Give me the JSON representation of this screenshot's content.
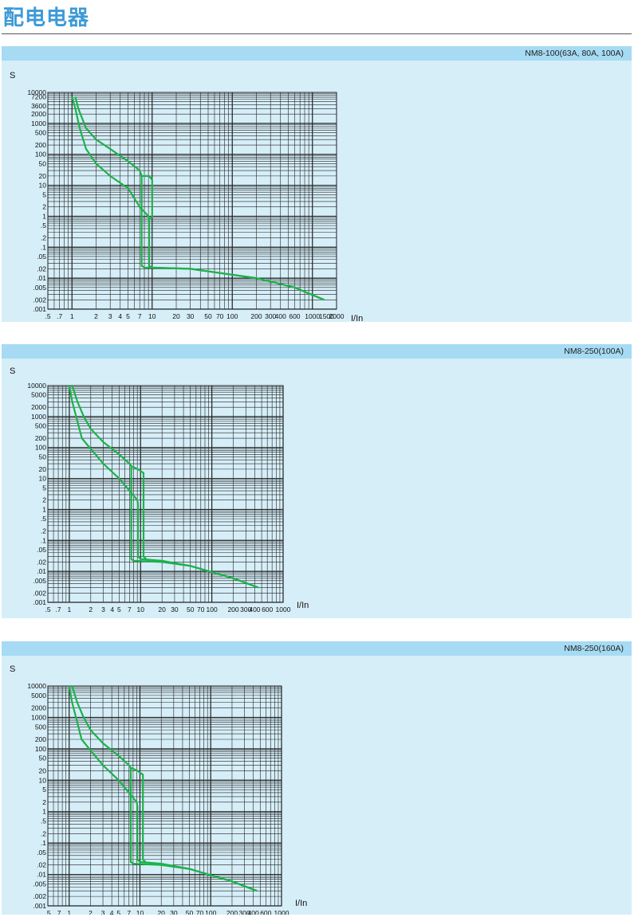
{
  "page_title": "配电电器",
  "chart_data": [
    {
      "type": "line",
      "title": "NM8-100(63A, 80A, 100A)",
      "ylabel": "S",
      "xlabel": "I/In",
      "y_ticks": [
        "10000",
        "7200",
        "3600",
        "2000",
        "1000",
        "500",
        "200",
        "100",
        "50",
        "20",
        "10",
        "5",
        "2",
        "1",
        ".5",
        ".2",
        ".1",
        ".05",
        ".02",
        ".01",
        ".005",
        ".002",
        ".001"
      ],
      "x_ticks": [
        ".5",
        ".7",
        "1",
        "2",
        "3",
        "4",
        "5",
        "7",
        "10",
        "20",
        "30",
        "50",
        "70",
        "100",
        "200",
        "300",
        "400",
        "600",
        "1000",
        "1500",
        "2000"
      ],
      "xlim": [
        0.5,
        2000
      ],
      "ylim": [
        0.001,
        10000
      ],
      "series": [
        {
          "values": [
            [
              1.1,
              7200
            ],
            [
              1.2,
              3000
            ],
            [
              1.5,
              700
            ],
            [
              2,
              300
            ],
            [
              3,
              150
            ],
            [
              5,
              60
            ],
            [
              7,
              30
            ],
            [
              7.4,
              20
            ],
            [
              7.4,
              0.025
            ],
            [
              8,
              0.022
            ],
            [
              30,
              0.02
            ],
            [
              200,
              0.01
            ],
            [
              600,
              0.005
            ],
            [
              1400,
              0.002
            ]
          ]
        },
        {
          "values": [
            [
              1.0,
              7200
            ],
            [
              1.1,
              3000
            ],
            [
              1.25,
              700
            ],
            [
              1.5,
              150
            ],
            [
              2,
              50
            ],
            [
              3,
              20
            ],
            [
              5,
              8
            ],
            [
              7,
              2
            ],
            [
              9,
              1
            ],
            [
              9.2,
              0.8
            ],
            [
              9.2,
              0.025
            ],
            [
              10,
              0.022
            ],
            [
              30,
              0.02
            ],
            [
              200,
              0.01
            ],
            [
              600,
              0.005
            ],
            [
              1400,
              0.002
            ]
          ]
        },
        {
          "values": [
            [
              7.4,
              20
            ],
            [
              9.2,
              20
            ],
            [
              10,
              15
            ],
            [
              10,
              1
            ],
            [
              9.2,
              0.8
            ]
          ]
        }
      ]
    },
    {
      "type": "line",
      "title": "NM8-250(100A)",
      "ylabel": "S",
      "xlabel": "I/In",
      "y_ticks": [
        "10000",
        "5000",
        "2000",
        "1000",
        "500",
        "200",
        "100",
        "50",
        "20",
        "10",
        "5",
        "2",
        "1",
        ".5",
        ".2",
        ".1",
        ".05",
        ".02",
        ".01",
        ".005",
        ".002",
        ".001"
      ],
      "x_ticks": [
        ".5",
        ".7",
        "1",
        "2",
        "3",
        "4",
        "5",
        "7",
        "10",
        "20",
        "30",
        "50",
        "70",
        "100",
        "200",
        "300",
        "400",
        "600",
        "1000"
      ],
      "xlim": [
        0.5,
        1000
      ],
      "ylim": [
        0.001,
        10000
      ],
      "series": [
        {
          "values": [
            [
              1.1,
              10000
            ],
            [
              1.3,
              3000
            ],
            [
              1.6,
              1000
            ],
            [
              2,
              400
            ],
            [
              3,
              150
            ],
            [
              5,
              60
            ],
            [
              7,
              30
            ],
            [
              7.4,
              25
            ],
            [
              7.4,
              0.025
            ],
            [
              8,
              0.022
            ],
            [
              20,
              0.02
            ],
            [
              50,
              0.015
            ],
            [
              200,
              0.006
            ],
            [
              450,
              0.003
            ]
          ]
        },
        {
          "values": [
            [
              1.0,
              10000
            ],
            [
              1.1,
              3000
            ],
            [
              1.3,
              700
            ],
            [
              1.5,
              200
            ],
            [
              2,
              90
            ],
            [
              3,
              30
            ],
            [
              5,
              10
            ],
            [
              7,
              4
            ],
            [
              9,
              2
            ],
            [
              9.2,
              1.5
            ],
            [
              9.2,
              0.03
            ],
            [
              10,
              0.025
            ],
            [
              20,
              0.022
            ],
            [
              50,
              0.015
            ],
            [
              200,
              0.006
            ],
            [
              450,
              0.003
            ]
          ]
        },
        {
          "values": [
            [
              7.4,
              25
            ],
            [
              9.2,
              20
            ],
            [
              11,
              15
            ],
            [
              11,
              0.03
            ],
            [
              12,
              0.025
            ]
          ]
        }
      ]
    },
    {
      "type": "line",
      "title": "NM8-250(160A)",
      "ylabel": "S",
      "xlabel": "I/In",
      "y_ticks": [
        "10000",
        "5000",
        "2000",
        "1000",
        "500",
        "200",
        "100",
        "50",
        "20",
        "10",
        "5",
        "2",
        "1",
        ".5",
        ".2",
        ".1",
        ".05",
        ".02",
        ".01",
        ".005",
        ".002",
        ".001"
      ],
      "x_ticks": [
        ".5",
        ".7",
        "1",
        "2",
        "3",
        "4",
        "5",
        "7",
        "10",
        "20",
        "30",
        "50",
        "70",
        "100",
        "200",
        "300",
        "400",
        "600",
        "1000"
      ],
      "xlim": [
        0.5,
        1000
      ],
      "ylim": [
        0.001,
        10000
      ],
      "series": [
        {
          "values": [
            [
              1.1,
              10000
            ],
            [
              1.3,
              3000
            ],
            [
              1.6,
              1000
            ],
            [
              2,
              400
            ],
            [
              3,
              150
            ],
            [
              5,
              60
            ],
            [
              7,
              30
            ],
            [
              7.4,
              25
            ],
            [
              7.4,
              0.025
            ],
            [
              8,
              0.022
            ],
            [
              20,
              0.02
            ],
            [
              50,
              0.015
            ],
            [
              200,
              0.006
            ],
            [
              450,
              0.003
            ]
          ]
        },
        {
          "values": [
            [
              1.0,
              10000
            ],
            [
              1.1,
              3000
            ],
            [
              1.3,
              700
            ],
            [
              1.5,
              200
            ],
            [
              2,
              90
            ],
            [
              3,
              30
            ],
            [
              5,
              10
            ],
            [
              7,
              4
            ],
            [
              9,
              2
            ],
            [
              9.2,
              1.5
            ],
            [
              9.2,
              0.03
            ],
            [
              10,
              0.025
            ],
            [
              20,
              0.022
            ],
            [
              50,
              0.015
            ],
            [
              200,
              0.006
            ],
            [
              450,
              0.003
            ]
          ]
        },
        {
          "values": [
            [
              7.4,
              25
            ],
            [
              9.2,
              20
            ],
            [
              11,
              15
            ],
            [
              11,
              0.03
            ],
            [
              12,
              0.025
            ]
          ]
        }
      ]
    }
  ]
}
